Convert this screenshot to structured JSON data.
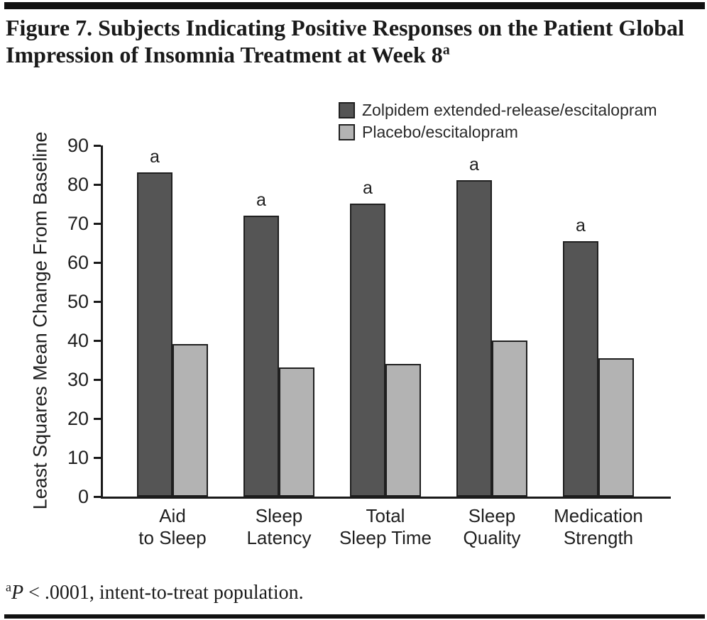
{
  "figure": {
    "title": "Figure 7. Subjects Indicating Positive Responses on the Patient Global Impression of Insomnia Treatment at Week 8",
    "title_sup": "a",
    "footnote_sup": "a",
    "footnote_p": "P",
    "footnote_rest": "< .0001, intent-to-treat population."
  },
  "legend": {
    "items": [
      {
        "label": "Zolpidem extended-release/escitalopram"
      },
      {
        "label": "Placebo/escitalopram"
      }
    ]
  },
  "chart_data": {
    "type": "bar",
    "title": "",
    "xlabel": "",
    "ylabel": "Least Squares Mean Change From Baseline",
    "ylim": [
      0,
      90
    ],
    "yticks": [
      0,
      10,
      20,
      30,
      40,
      50,
      60,
      70,
      80,
      90
    ],
    "grid": false,
    "legend_position": "top-right",
    "categories": [
      "Aid to Sleep",
      "Sleep Latency",
      "Total Sleep Time",
      "Sleep Quality",
      "Medication Strength"
    ],
    "category_label_lines": [
      [
        "Aid",
        "to Sleep"
      ],
      [
        "Sleep",
        "Latency"
      ],
      [
        "Total",
        "Sleep Time"
      ],
      [
        "Sleep",
        "Quality"
      ],
      [
        "Medication",
        "Strength"
      ]
    ],
    "series": [
      {
        "name": "Zolpidem extended-release/escitalopram",
        "color": "#555555",
        "values": [
          83,
          72,
          75,
          81,
          65.5
        ],
        "bar_label": "a"
      },
      {
        "name": "Placebo/escitalopram",
        "color": "#b3b3b3",
        "values": [
          39,
          33,
          34,
          40,
          35.5
        ],
        "bar_label": ""
      }
    ],
    "bar_label_meaning": "a = P < .0001 vs placebo/escitalopram"
  }
}
